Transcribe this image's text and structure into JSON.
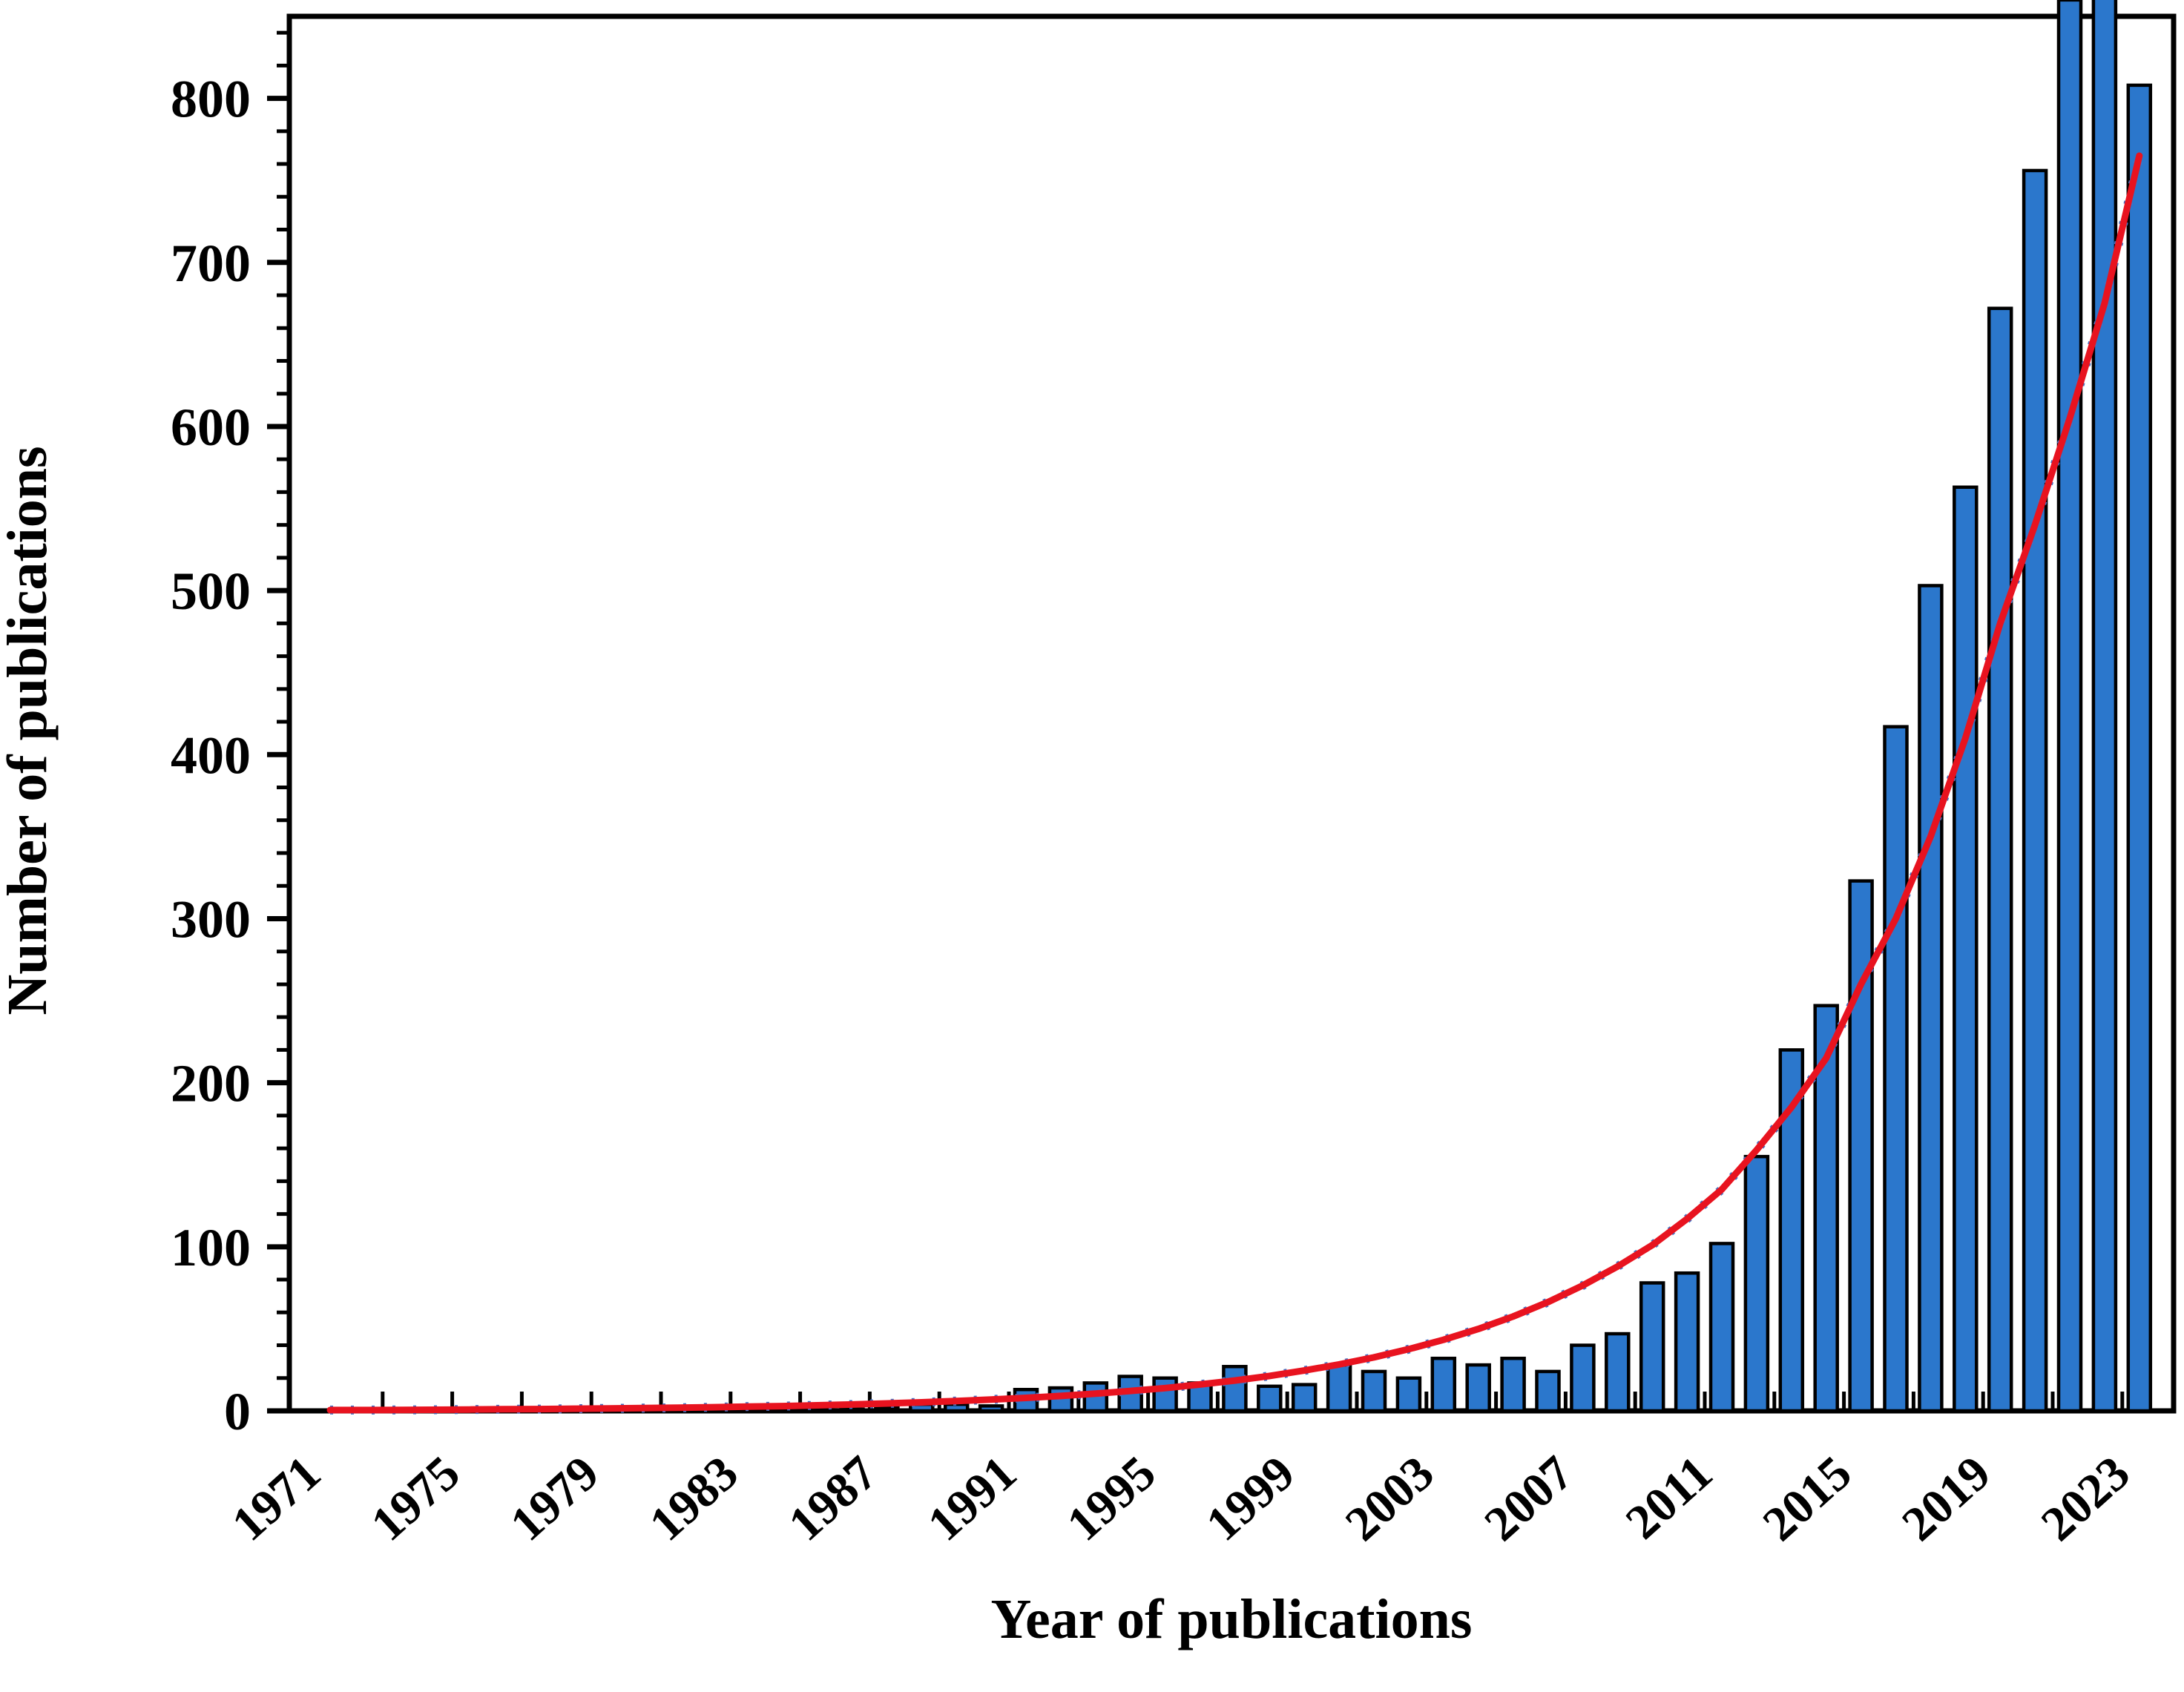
{
  "figure": {
    "kind": "scientific bar chart with exponential trend line",
    "background": "#ffffff"
  },
  "chart_data": {
    "type": "bar",
    "title": "",
    "xlabel": "Year of publications",
    "ylabel": "Number of publications",
    "legend": "none",
    "grid": "off",
    "ylim": [
      0,
      850
    ],
    "ytick_major": 100,
    "ytick_minor": 20,
    "ytick_label_max": 800,
    "xtick_label_step": 4,
    "xtick_minor_step": 2,
    "categories": [
      1971,
      1972,
      1973,
      1974,
      1975,
      1976,
      1977,
      1978,
      1979,
      1980,
      1981,
      1982,
      1983,
      1984,
      1985,
      1986,
      1987,
      1988,
      1989,
      1990,
      1991,
      1992,
      1993,
      1994,
      1995,
      1996,
      1997,
      1998,
      1999,
      2000,
      2001,
      2002,
      2003,
      2004,
      2005,
      2006,
      2007,
      2008,
      2009,
      2010,
      2011,
      2012,
      2013,
      2014,
      2015,
      2016,
      2017,
      2018,
      2019,
      2020,
      2021,
      2022,
      2023
    ],
    "series": [
      {
        "name": "publications-per-year",
        "role": "bars",
        "values": [
          0,
          0,
          0,
          0,
          0,
          0,
          0,
          0,
          0,
          0,
          1,
          0,
          0,
          0,
          1,
          1,
          2,
          4,
          4,
          3,
          13,
          14,
          17,
          21,
          20,
          17,
          27,
          15,
          16,
          28,
          24,
          20,
          32,
          28,
          32,
          24,
          40,
          47,
          78,
          84,
          102,
          155,
          220,
          247,
          323,
          417,
          503,
          563,
          672,
          756,
          860,
          878,
          808
        ]
      },
      {
        "name": "exponential-trend",
        "role": "line",
        "values": [
          0.5,
          0.5,
          0.6,
          0.7,
          0.8,
          1.0,
          1.1,
          1.3,
          1.5,
          1.7,
          1.9,
          2.2,
          2.6,
          2.9,
          3.4,
          3.9,
          4.5,
          5.2,
          6.0,
          6.9,
          7.9,
          9.1,
          10.5,
          12.1,
          13.9,
          16.1,
          18.5,
          21.3,
          24.6,
          28.3,
          32.6,
          37.6,
          43.3,
          49.9,
          57.5,
          66.3,
          76.4,
          88,
          101,
          117,
          135,
          159,
          185,
          215,
          260,
          300,
          350,
          410,
          480,
          540,
          605,
          675,
          765
        ]
      }
    ],
    "clipped_years": [
      2021,
      2022
    ],
    "colors": {
      "bar_fill": "#2b77cc",
      "bar_outline": "#000000",
      "trend_line": "#e8131f",
      "trend_dots": "#4472c4",
      "axis": "#000000",
      "background": "#ffffff"
    },
    "ytick_labels": [
      "0",
      "100",
      "200",
      "300",
      "400",
      "500",
      "600",
      "700",
      "800"
    ]
  }
}
